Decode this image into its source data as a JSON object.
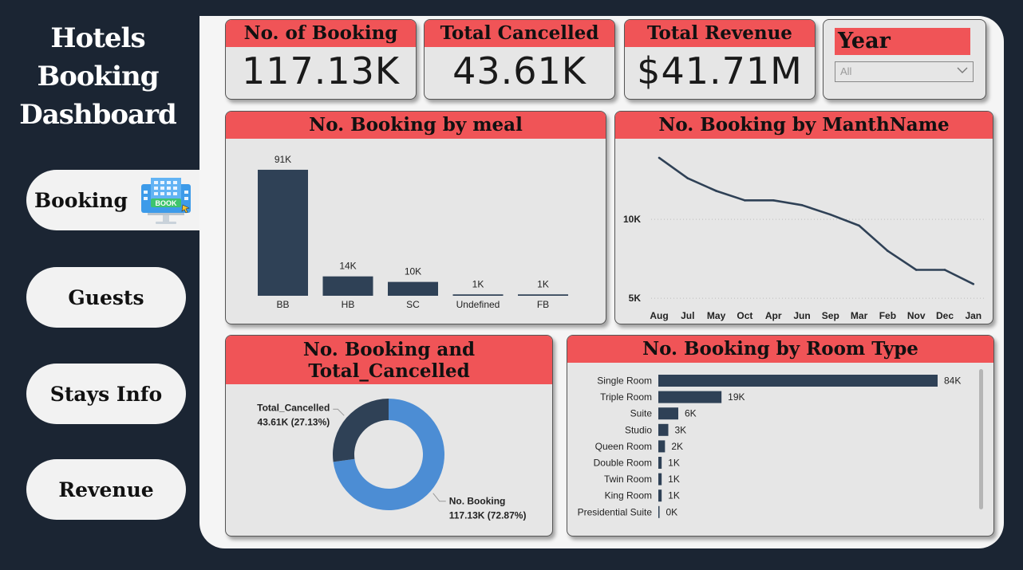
{
  "sidebar": {
    "title_lines": [
      "Hotels",
      "Booking",
      "Dashboard"
    ],
    "nav": {
      "booking": "Booking",
      "guests": "Guests",
      "stays": "Stays Info",
      "revenue": "Revenue"
    },
    "book_icon_text": "BOOK"
  },
  "kpis": {
    "bookings": {
      "label": "No. of Booking",
      "value": "117.13K"
    },
    "cancelled": {
      "label": "Total Cancelled",
      "value": "43.61K"
    },
    "revenue": {
      "label": "Total Revenue",
      "value": "$41.71M"
    }
  },
  "slicer": {
    "title": "Year",
    "selected": "All"
  },
  "colors": {
    "accent": "#f05457",
    "bar": "#2f4156",
    "donut_light": "#4c8dd4",
    "sidebar": "#1b2533"
  },
  "chart_data": [
    {
      "id": "meal",
      "type": "bar",
      "title": "No. Booking by meal",
      "categories": [
        "BB",
        "HB",
        "SC",
        "Undefined",
        "FB"
      ],
      "values": [
        91,
        14,
        10,
        1,
        1
      ],
      "labels": [
        "91K",
        "14K",
        "10K",
        "1K",
        "1K"
      ],
      "ylim": [
        0,
        95
      ]
    },
    {
      "id": "month",
      "type": "line",
      "title": "No. Booking by ManthName",
      "categories": [
        "Aug",
        "Jul",
        "May",
        "Oct",
        "Apr",
        "Jun",
        "Sep",
        "Mar",
        "Feb",
        "Nov",
        "Dec",
        "Jan"
      ],
      "values": [
        13.9,
        12.6,
        11.8,
        11.2,
        11.2,
        10.9,
        10.3,
        9.6,
        8.0,
        6.8,
        6.8,
        5.9
      ],
      "yticks": [
        {
          "value": 10,
          "label": "10K"
        },
        {
          "value": 5,
          "label": "5K"
        }
      ],
      "ylim": [
        4.5,
        14.5
      ]
    },
    {
      "id": "donut",
      "type": "pie",
      "title_lines": [
        "No. Booking and",
        "Total_Cancelled"
      ],
      "slices": [
        {
          "name": "No. Booking",
          "value": 117.13,
          "label": "117.13K (72.87%)"
        },
        {
          "name": "Total_Cancelled",
          "value": 43.61,
          "label": "43.61K (27.13%)"
        }
      ]
    },
    {
      "id": "room",
      "type": "bar",
      "orientation": "horizontal",
      "title": "No. Booking by Room Type",
      "categories": [
        "Single Room",
        "Triple Room",
        "Suite",
        "Studio",
        "Queen Room",
        "Double Room",
        "Twin Room",
        "King Room",
        "Presidential Suite"
      ],
      "values": [
        84,
        19,
        6,
        3,
        2,
        1,
        1,
        1,
        0.2
      ],
      "labels": [
        "84K",
        "19K",
        "6K",
        "3K",
        "2K",
        "1K",
        "1K",
        "1K",
        "0K"
      ],
      "xlim": [
        0,
        84
      ]
    }
  ]
}
